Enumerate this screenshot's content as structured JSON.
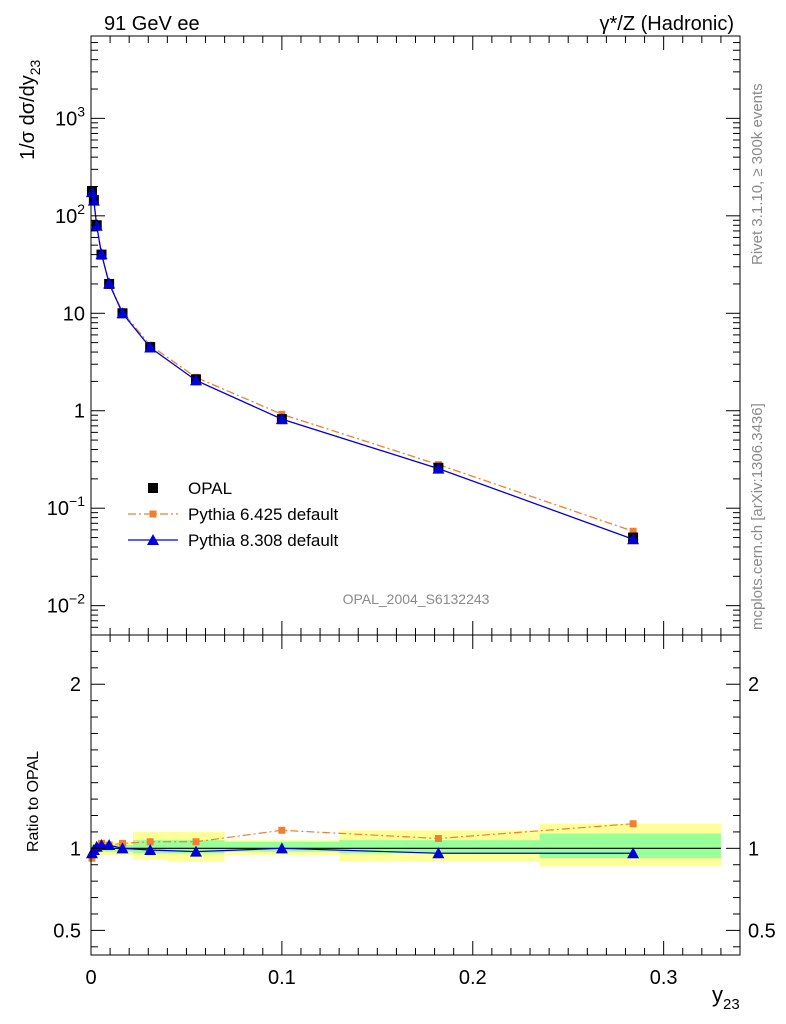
{
  "header": {
    "left": "91 GeV ee",
    "right": "γ*/Z (Hadronic)"
  },
  "side_labels": {
    "rivet": "Rivet 3.1.10, ≥ 300k events",
    "mcplots": "mcplots.cern.ch [arXiv:1306.3436]"
  },
  "analysis_label": "OPAL_2004_S6132243",
  "chart_data": [
    {
      "type": "line",
      "panel": "main",
      "yscale": "log",
      "xlim": [
        0,
        0.34
      ],
      "ylim": [
        0.005,
        7000
      ],
      "ylabel": "1/σ dσ/dy",
      "ylabel_sub": "23",
      "y_ticks": [
        {
          "value": 0.01,
          "base": "10",
          "exp": "−2"
        },
        {
          "value": 0.1,
          "base": "10",
          "exp": "−1"
        },
        {
          "value": 1,
          "base": "1",
          "exp": ""
        },
        {
          "value": 10,
          "base": "10",
          "exp": ""
        },
        {
          "value": 100,
          "base": "10",
          "exp": "2"
        },
        {
          "value": 1000,
          "base": "10",
          "exp": "3"
        }
      ],
      "legend_position": "bottom-left",
      "series": [
        {
          "name": "OPAL",
          "marker": "square",
          "color": "#000000",
          "x": [
            0.0005,
            0.0015,
            0.003,
            0.0055,
            0.0095,
            0.0165,
            0.031,
            0.055,
            0.1,
            0.182,
            0.284
          ],
          "y": [
            180,
            145,
            80,
            40,
            20,
            10,
            4.5,
            2.1,
            0.82,
            0.26,
            0.05
          ]
        },
        {
          "name": "Pythia 6.425 default",
          "marker": "small-square",
          "color": "#f08030",
          "dash": "8,3,2,3",
          "x": [
            0.0005,
            0.0015,
            0.003,
            0.0055,
            0.0095,
            0.0165,
            0.031,
            0.055,
            0.1,
            0.182,
            0.284
          ],
          "y": [
            170,
            142,
            79,
            41,
            20.5,
            10.3,
            4.7,
            2.2,
            0.92,
            0.28,
            0.058
          ]
        },
        {
          "name": "Pythia 8.308 default",
          "marker": "triangle",
          "color": "#0000d8",
          "dash": "",
          "x": [
            0.0005,
            0.0015,
            0.003,
            0.0055,
            0.0095,
            0.0165,
            0.031,
            0.055,
            0.1,
            0.182,
            0.284
          ],
          "y": [
            175,
            143,
            79,
            40.5,
            20.2,
            10,
            4.45,
            2.05,
            0.82,
            0.255,
            0.048
          ]
        }
      ]
    },
    {
      "type": "line",
      "panel": "ratio",
      "xlim": [
        0,
        0.34
      ],
      "ylim": [
        0.35,
        2.3
      ],
      "xlabel": "y",
      "xlabel_sub": "23",
      "ylabel": "Ratio to OPAL",
      "x_ticks": [
        "0",
        "0.1",
        "0.2",
        "0.3"
      ],
      "x_tick_values": [
        0,
        0.1,
        0.2,
        0.3
      ],
      "y_ticks": [
        "0.5",
        "1",
        "2"
      ],
      "y_tick_values": [
        0.5,
        1,
        2
      ],
      "bands": [
        {
          "x0": 0.0,
          "x1": 0.001,
          "stat_lo": 0.98,
          "stat_hi": 1.02,
          "tot_lo": 0.96,
          "tot_hi": 1.04
        },
        {
          "x0": 0.001,
          "x1": 0.002,
          "stat_lo": 0.98,
          "stat_hi": 1.02,
          "tot_lo": 0.96,
          "tot_hi": 1.04
        },
        {
          "x0": 0.002,
          "x1": 0.004,
          "stat_lo": 0.98,
          "stat_hi": 1.02,
          "tot_lo": 0.96,
          "tot_hi": 1.04
        },
        {
          "x0": 0.004,
          "x1": 0.007,
          "stat_lo": 0.98,
          "stat_hi": 1.02,
          "tot_lo": 0.96,
          "tot_hi": 1.04
        },
        {
          "x0": 0.007,
          "x1": 0.012,
          "stat_lo": 0.98,
          "stat_hi": 1.02,
          "tot_lo": 0.96,
          "tot_hi": 1.04
        },
        {
          "x0": 0.012,
          "x1": 0.022,
          "stat_lo": 0.98,
          "stat_hi": 1.02,
          "tot_lo": 0.96,
          "tot_hi": 1.04
        },
        {
          "x0": 0.022,
          "x1": 0.04,
          "stat_lo": 0.97,
          "stat_hi": 1.05,
          "tot_lo": 0.93,
          "tot_hi": 1.1
        },
        {
          "x0": 0.04,
          "x1": 0.07,
          "stat_lo": 0.97,
          "stat_hi": 1.05,
          "tot_lo": 0.92,
          "tot_hi": 1.1
        },
        {
          "x0": 0.07,
          "x1": 0.13,
          "stat_lo": 0.98,
          "stat_hi": 1.04,
          "tot_lo": 0.96,
          "tot_hi": 1.05
        },
        {
          "x0": 0.13,
          "x1": 0.235,
          "stat_lo": 0.97,
          "stat_hi": 1.05,
          "tot_lo": 0.92,
          "tot_hi": 1.11
        },
        {
          "x0": 0.235,
          "x1": 0.33,
          "stat_lo": 0.94,
          "stat_hi": 1.09,
          "tot_lo": 0.89,
          "tot_hi": 1.15
        }
      ],
      "series": [
        {
          "name": "OPAL",
          "color": "#000000",
          "x": [
            0.0,
            0.33
          ],
          "y": [
            1.0,
            1.0
          ]
        },
        {
          "name": "Pythia 6.425 default",
          "marker": "small-square",
          "color": "#f08030",
          "dash": "8,3,2,3",
          "x": [
            0.0005,
            0.0015,
            0.003,
            0.0055,
            0.0095,
            0.0165,
            0.031,
            0.055,
            0.1,
            0.182,
            0.284
          ],
          "y": [
            0.94,
            0.98,
            1.0,
            1.03,
            1.02,
            1.03,
            1.04,
            1.04,
            1.11,
            1.06,
            1.15
          ]
        },
        {
          "name": "Pythia 8.308 default",
          "marker": "triangle",
          "color": "#0000d8",
          "dash": "",
          "x": [
            0.0005,
            0.0015,
            0.003,
            0.0055,
            0.0095,
            0.0165,
            0.031,
            0.055,
            0.1,
            0.182,
            0.284
          ],
          "y": [
            0.97,
            0.99,
            1.01,
            1.02,
            1.02,
            1.0,
            0.99,
            0.98,
            1.0,
            0.97,
            0.97
          ]
        }
      ]
    }
  ]
}
